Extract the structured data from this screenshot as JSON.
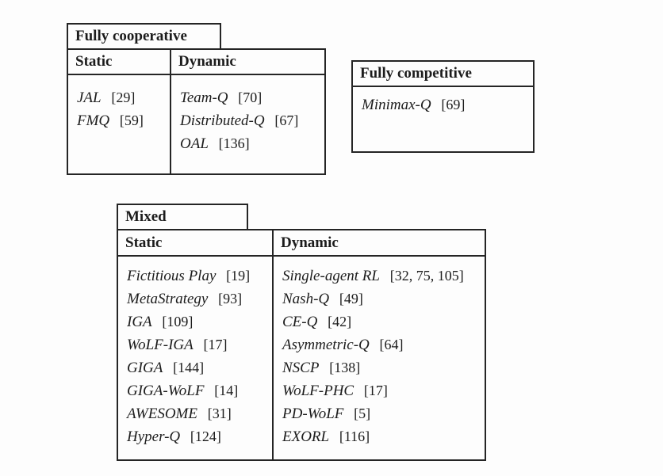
{
  "figure": {
    "fully_cooperative": {
      "title": "Fully cooperative",
      "static_header": "Static",
      "dynamic_header": "Dynamic",
      "static_entries": [
        {
          "name": "JAL",
          "cite": "[29]"
        },
        {
          "name": "FMQ",
          "cite": "[59]"
        }
      ],
      "dynamic_entries": [
        {
          "name": "Team-Q",
          "cite": "[70]"
        },
        {
          "name": "Distributed-Q",
          "cite": "[67]"
        },
        {
          "name": "OAL",
          "cite": "[136]"
        }
      ]
    },
    "fully_competitive": {
      "title": "Fully competitive",
      "entries": [
        {
          "name": "Minimax-Q",
          "cite": "[69]"
        }
      ]
    },
    "mixed": {
      "title": "Mixed",
      "static_header": "Static",
      "dynamic_header": "Dynamic",
      "static_entries": [
        {
          "name": "Fictitious Play",
          "cite": "[19]"
        },
        {
          "name": "MetaStrategy",
          "cite": "[93]"
        },
        {
          "name": "IGA",
          "cite": "[109]"
        },
        {
          "name": "WoLF-IGA",
          "cite": "[17]"
        },
        {
          "name": "GIGA",
          "cite": "[144]"
        },
        {
          "name": "GIGA-WoLF",
          "cite": "[14]"
        },
        {
          "name": "AWESOME",
          "cite": "[31]"
        },
        {
          "name": "Hyper-Q",
          "cite": "[124]"
        }
      ],
      "dynamic_entries": [
        {
          "name": "Single-agent RL",
          "cite": "[32, 75, 105]"
        },
        {
          "name": "Nash-Q",
          "cite": "[49]"
        },
        {
          "name": "CE-Q",
          "cite": "[42]"
        },
        {
          "name": "Asymmetric-Q",
          "cite": "[64]"
        },
        {
          "name": "NSCP",
          "cite": "[138]"
        },
        {
          "name": "WoLF-PHC",
          "cite": "[17]"
        },
        {
          "name": "PD-WoLF",
          "cite": "[5]"
        },
        {
          "name": "EXORL",
          "cite": "[116]"
        }
      ]
    },
    "colors": {
      "border": "#252525",
      "text": "#1c1c1c",
      "background": "#fdfdfd"
    }
  }
}
